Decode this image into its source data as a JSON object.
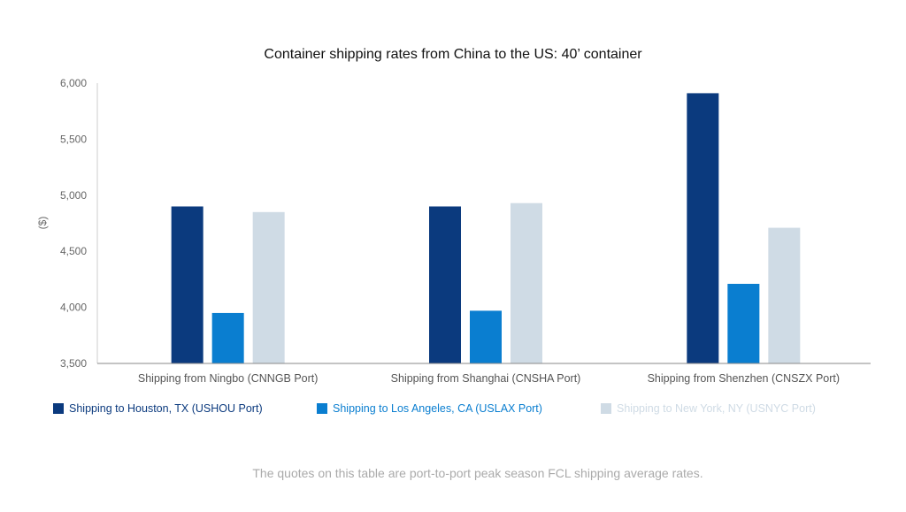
{
  "chart_data": {
    "type": "bar",
    "title": "Container shipping rates from China to the US: 40’ container",
    "ylabel": "($)",
    "xlabel": "",
    "ylim": [
      3500,
      6000
    ],
    "yticks": [
      "3,500",
      "4,000",
      "4,500",
      "5,000",
      "5,500",
      "6,000"
    ],
    "ytick_values": [
      3500,
      4000,
      4500,
      5000,
      5500,
      6000
    ],
    "categories": [
      "Shipping from Ningbo (CNNGB Port)",
      "Shipping from Shanghai (CNSHA Port)",
      "Shipping from Shenzhen (CNSZX Port)"
    ],
    "series": [
      {
        "name": "Shipping to Houston, TX (USHOU Port)",
        "color": "#0b3a7e",
        "values": [
          4900,
          4900,
          5910
        ]
      },
      {
        "name": "Shipping to Los Angeles, CA (USLAX Port)",
        "color": "#0a7ed0",
        "values": [
          3950,
          3970,
          4210
        ]
      },
      {
        "name": "Shipping to New York, NY (USNYC Port)",
        "color": "#cfdbe5",
        "values": [
          4850,
          4930,
          4710
        ]
      }
    ],
    "legend_position": "bottom-left",
    "grid": false
  },
  "footnote": "The quotes on this table are port-to-port peak season FCL shipping average rates."
}
